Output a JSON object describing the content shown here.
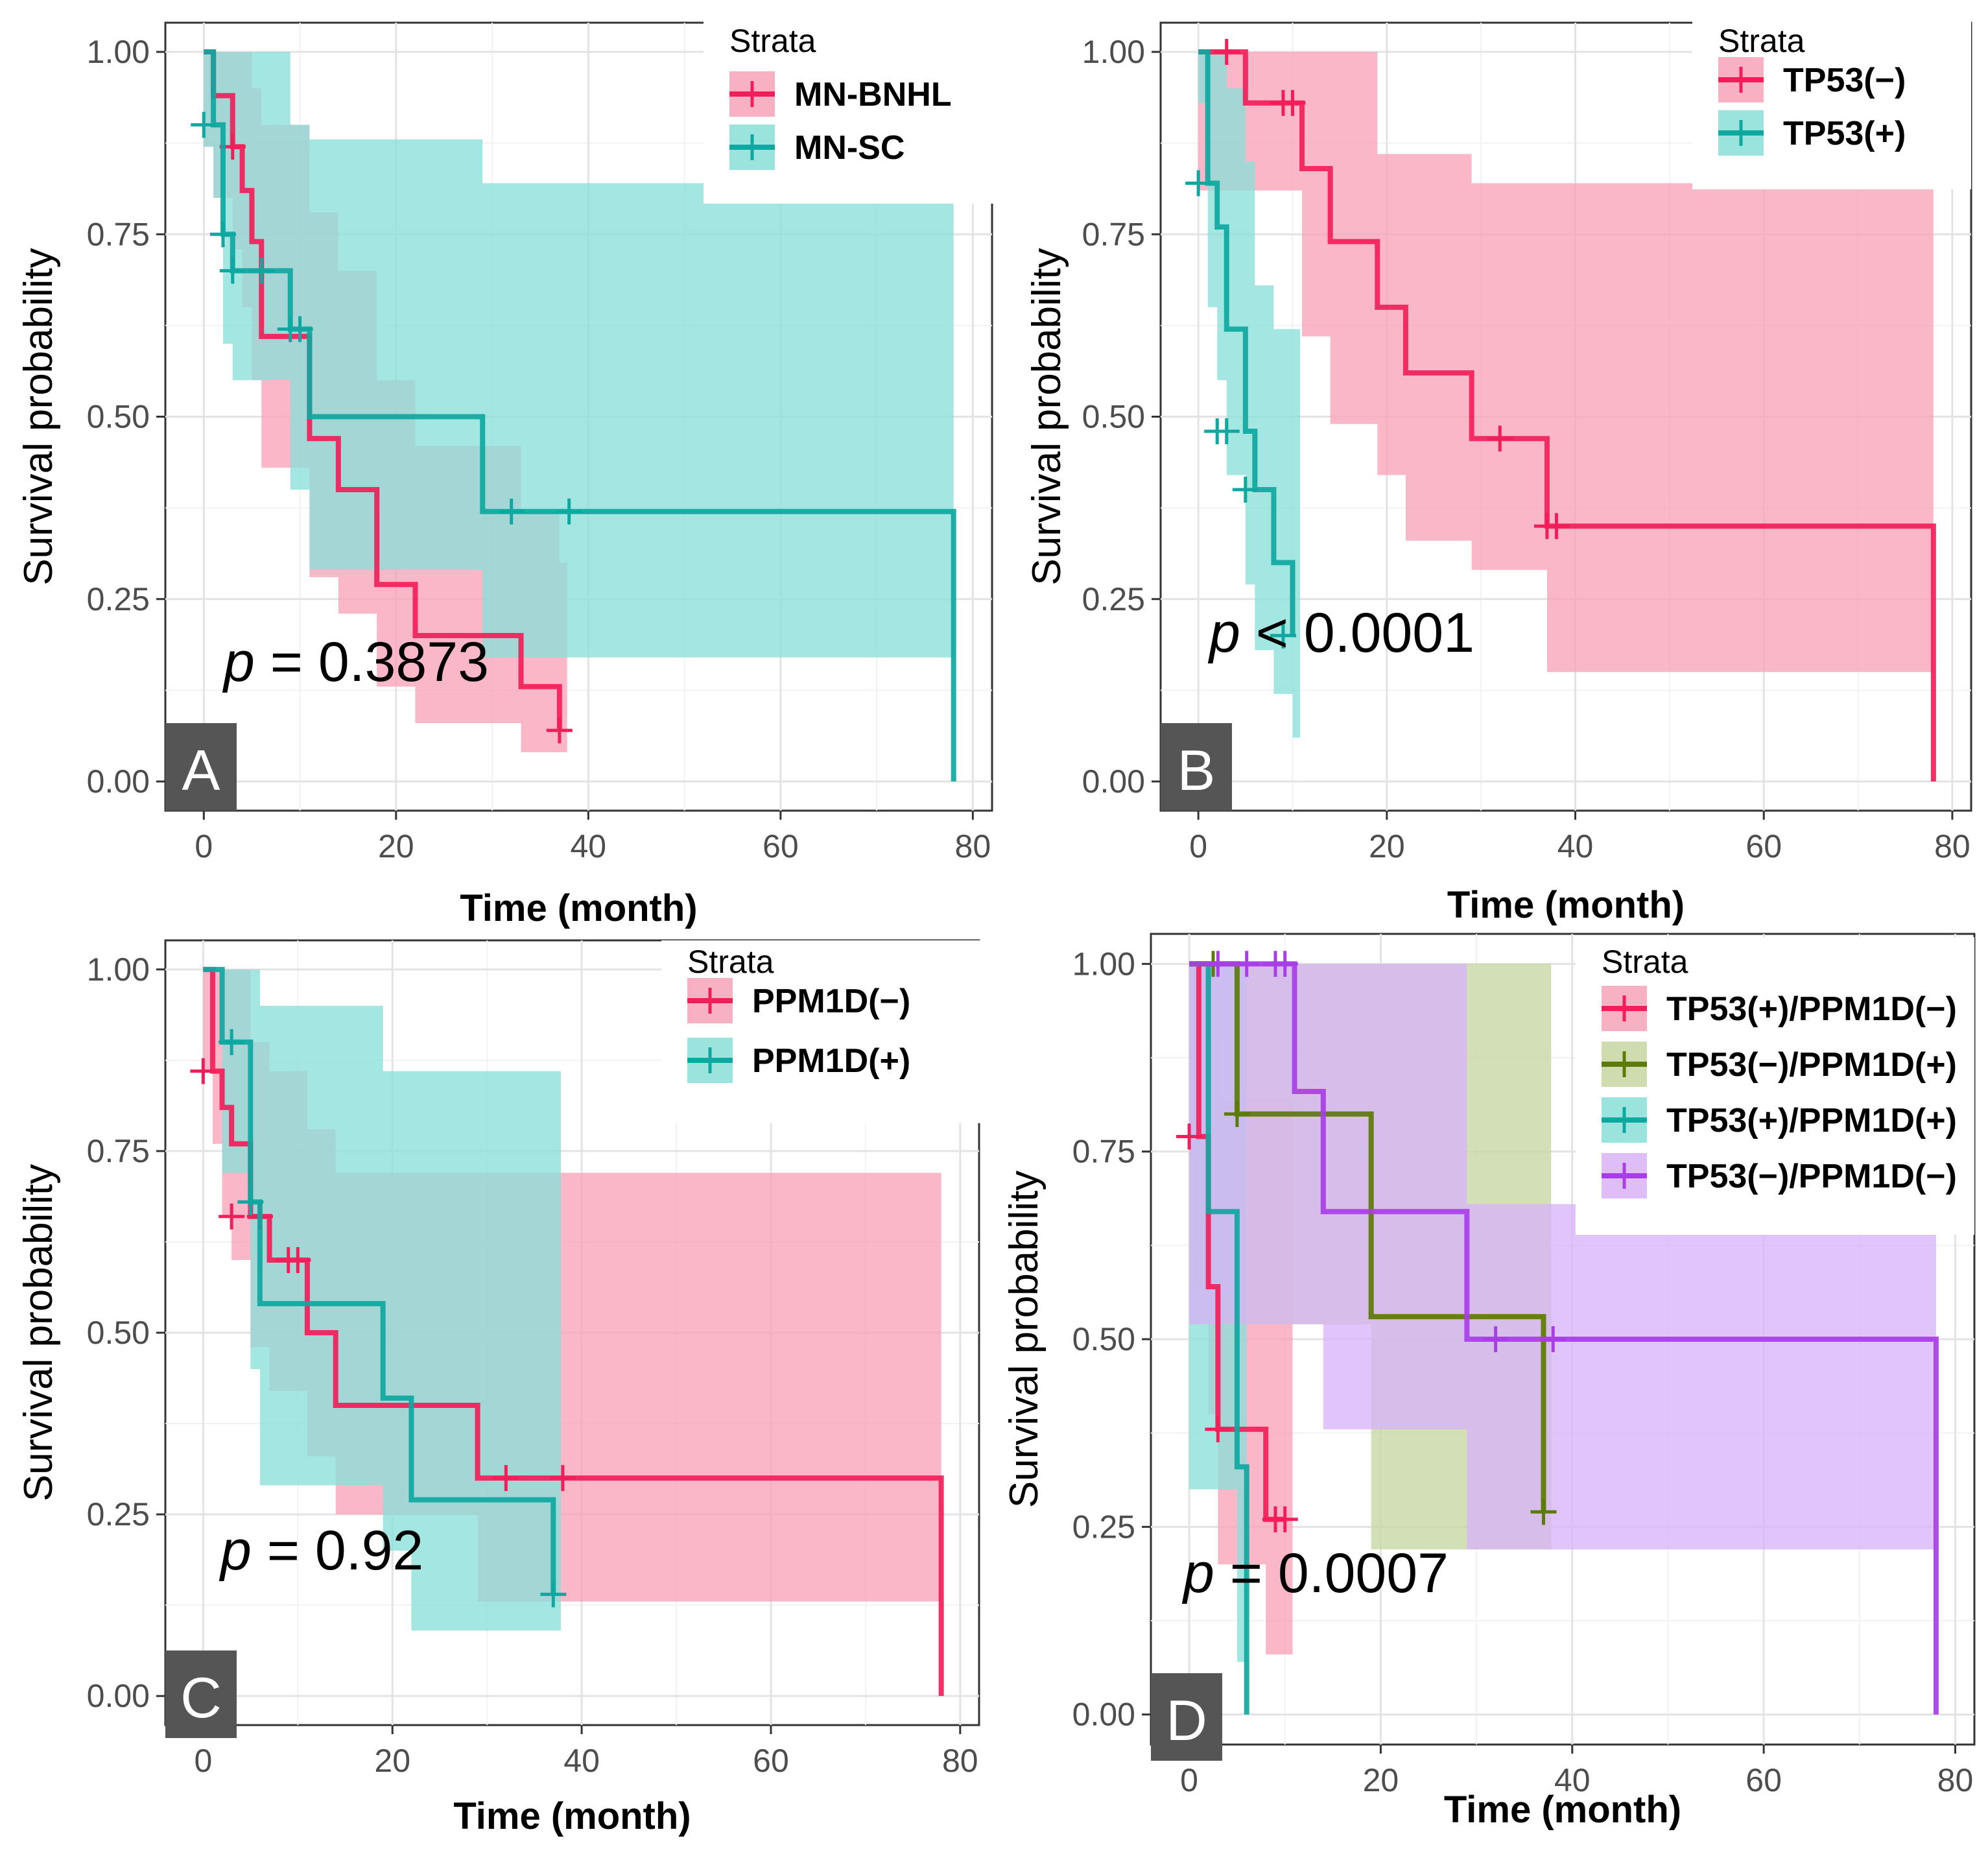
{
  "chart_data": [
    {
      "type": "line",
      "subtype": "kaplan-meier",
      "panel": "A",
      "xlabel": "Time (month)",
      "ylabel": "Survival probability",
      "xlim": [
        -4,
        82
      ],
      "ylim": [
        -0.04,
        1.04
      ],
      "xticks": [
        0,
        20,
        40,
        60,
        80
      ],
      "xtick_labels": [
        "0",
        "20",
        "40",
        "60",
        "80"
      ],
      "yticks": [
        0,
        0.25,
        0.5,
        0.75,
        1.0
      ],
      "ytick_labels": [
        "0.00",
        "0.25",
        "0.50",
        "0.75",
        "1.00"
      ],
      "legend_title": "Strata",
      "legend_position": "top-right",
      "pvalue_prefix": "p",
      "pvalue_text": " = 0.3873",
      "series": [
        {
          "name": "MN-BNHL",
          "color": "#f21e5a",
          "fill": "#f7a3b8",
          "x": [
            0,
            1,
            3,
            4,
            5,
            6,
            8,
            11,
            14,
            18,
            22,
            24,
            33,
            37
          ],
          "y": [
            1.0,
            0.94,
            0.87,
            0.81,
            0.74,
            0.61,
            0.61,
            0.47,
            0.4,
            0.27,
            0.2,
            0.2,
            0.13,
            0.07
          ],
          "lower": [
            0.87,
            0.8,
            0.73,
            0.65,
            0.55,
            0.43,
            0.43,
            0.28,
            0.23,
            0.13,
            0.08,
            0.08,
            0.04,
            0.04
          ],
          "upper": [
            1.0,
            1.0,
            1.0,
            1.0,
            0.95,
            0.9,
            0.9,
            0.78,
            0.7,
            0.55,
            0.46,
            0.46,
            0.37,
            0.3
          ],
          "censor_x": [
            3,
            37
          ],
          "censor_y": [
            0.87,
            0.07
          ]
        },
        {
          "name": "MN-SC",
          "color": "#0ea8a0",
          "fill": "#8adfd8",
          "x": [
            0,
            1,
            2,
            3,
            4,
            9,
            11,
            29,
            78
          ],
          "y": [
            1.0,
            0.9,
            0.75,
            0.7,
            0.7,
            0.62,
            0.5,
            0.37,
            0.0
          ],
          "lower": [
            0.87,
            0.8,
            0.6,
            0.55,
            0.55,
            0.4,
            0.29,
            0.17,
            0.17
          ],
          "upper": [
            1.0,
            1.0,
            1.0,
            1.0,
            1.0,
            0.9,
            0.88,
            0.82,
            0.82
          ],
          "censor_x": [
            0,
            2,
            3,
            6,
            9,
            10,
            32,
            38
          ],
          "censor_y": [
            0.9,
            0.75,
            0.7,
            0.7,
            0.62,
            0.62,
            0.37,
            0.37
          ]
        }
      ]
    },
    {
      "type": "line",
      "subtype": "kaplan-meier",
      "panel": "B",
      "xlabel": "Time (month)",
      "ylabel": "Survival probability",
      "xlim": [
        -4,
        82
      ],
      "ylim": [
        -0.04,
        1.04
      ],
      "xticks": [
        0,
        20,
        40,
        60,
        80
      ],
      "xtick_labels": [
        "0",
        "20",
        "40",
        "60",
        "80"
      ],
      "yticks": [
        0,
        0.25,
        0.5,
        0.75,
        1.0
      ],
      "ytick_labels": [
        "0.00",
        "0.25",
        "0.50",
        "0.75",
        "1.00"
      ],
      "legend_title": "Strata",
      "legend_position": "top-right",
      "pvalue_prefix": "p",
      "pvalue_text": " < 0.0001",
      "series": [
        {
          "name": "TP53(−)",
          "color": "#f21e5a",
          "fill": "#f7a3b8",
          "x": [
            0,
            5,
            11,
            14,
            19,
            22,
            29,
            37,
            78
          ],
          "y": [
            1.0,
            0.93,
            0.84,
            0.74,
            0.65,
            0.56,
            0.47,
            0.35,
            0.0
          ],
          "lower": [
            0.81,
            0.81,
            0.61,
            0.49,
            0.42,
            0.33,
            0.29,
            0.15,
            0.15
          ],
          "upper": [
            1.0,
            1.0,
            1.0,
            1.0,
            0.86,
            0.86,
            0.82,
            0.82,
            0.82
          ],
          "censor_x": [
            3,
            9,
            10,
            32,
            37,
            38
          ],
          "censor_y": [
            1.0,
            0.93,
            0.93,
            0.47,
            0.35,
            0.35
          ]
        },
        {
          "name": "TP53(+)",
          "color": "#0ea8a0",
          "fill": "#8adfd8",
          "x": [
            0,
            1,
            2,
            3,
            5,
            6,
            8,
            10
          ],
          "y": [
            1.0,
            0.82,
            0.76,
            0.62,
            0.48,
            0.4,
            0.3,
            0.2
          ],
          "lower": [
            0.93,
            0.65,
            0.55,
            0.42,
            0.27,
            0.18,
            0.12,
            0.06
          ],
          "upper": [
            1.0,
            1.0,
            1.0,
            0.95,
            0.85,
            0.68,
            0.62,
            0.62
          ],
          "censor_x": [
            0,
            2,
            3,
            5,
            9
          ],
          "censor_y": [
            0.82,
            0.48,
            0.48,
            0.4,
            0.2
          ]
        }
      ]
    },
    {
      "type": "line",
      "subtype": "kaplan-meier",
      "panel": "C",
      "xlabel": "Time (month)",
      "ylabel": "Survival probability",
      "xlim": [
        -4,
        82
      ],
      "ylim": [
        -0.04,
        1.04
      ],
      "xticks": [
        0,
        20,
        40,
        60,
        80
      ],
      "xtick_labels": [
        "0",
        "20",
        "40",
        "60",
        "80"
      ],
      "yticks": [
        0,
        0.25,
        0.5,
        0.75,
        1.0
      ],
      "ytick_labels": [
        "0.00",
        "0.25",
        "0.50",
        "0.75",
        "1.00"
      ],
      "legend_title": "Strata",
      "legend_position": "top-right",
      "pvalue_prefix": "p",
      "pvalue_text": " = 0.92",
      "series": [
        {
          "name": "PPM1D(−)",
          "color": "#f21e5a",
          "fill": "#f7a3b8",
          "x": [
            0,
            1,
            2,
            3,
            5,
            7,
            11,
            14,
            29,
            78
          ],
          "y": [
            1.0,
            0.86,
            0.81,
            0.76,
            0.66,
            0.6,
            0.5,
            0.4,
            0.3,
            0.0
          ],
          "lower": [
            0.86,
            0.76,
            0.66,
            0.6,
            0.48,
            0.42,
            0.33,
            0.25,
            0.13,
            0.13
          ],
          "upper": [
            1.0,
            1.0,
            1.0,
            1.0,
            0.9,
            0.86,
            0.78,
            0.72,
            0.72,
            0.72
          ],
          "censor_x": [
            0,
            3,
            6,
            9,
            10,
            32,
            38
          ],
          "censor_y": [
            0.86,
            0.66,
            0.66,
            0.6,
            0.6,
            0.3,
            0.3
          ]
        },
        {
          "name": "PPM1D(+)",
          "color": "#0ea8a0",
          "fill": "#8adfd8",
          "x": [
            0,
            2,
            5,
            6,
            19,
            22,
            37
          ],
          "y": [
            1.0,
            0.9,
            0.68,
            0.54,
            0.41,
            0.27,
            0.14
          ],
          "lower": [
            1.0,
            0.72,
            0.45,
            0.29,
            0.2,
            0.09,
            0.09
          ],
          "upper": [
            1.0,
            1.0,
            1.0,
            0.95,
            0.86,
            0.86,
            0.86
          ],
          "censor_x": [
            3,
            5,
            37
          ],
          "censor_y": [
            0.9,
            0.68,
            0.14
          ]
        }
      ]
    },
    {
      "type": "line",
      "subtype": "kaplan-meier",
      "panel": "D",
      "xlabel": "Time (month)",
      "ylabel": "Survival probability",
      "xlim": [
        -4,
        82
      ],
      "ylim": [
        -0.04,
        1.04
      ],
      "xticks": [
        0,
        20,
        40,
        60,
        80
      ],
      "xtick_labels": [
        "0",
        "20",
        "40",
        "60",
        "80"
      ],
      "yticks": [
        0,
        0.25,
        0.5,
        0.75,
        1.0
      ],
      "ytick_labels": [
        "0.00",
        "0.25",
        "0.50",
        "0.75",
        "1.00"
      ],
      "legend_title": "Strata",
      "legend_position": "top-right",
      "pvalue_prefix": "p",
      "pvalue_text": " = 0.0007",
      "series": [
        {
          "name": "TP53(+)/PPM1D(−)",
          "color": "#f21e5a",
          "fill": "#f7a3b8",
          "x": [
            0,
            1,
            2,
            3,
            5,
            8,
            10
          ],
          "y": [
            1.0,
            0.77,
            0.57,
            0.38,
            0.38,
            0.26,
            0.26
          ],
          "lower": [
            0.57,
            0.57,
            0.4,
            0.2,
            0.2,
            0.08,
            0.08
          ],
          "upper": [
            1.0,
            1.0,
            0.9,
            0.82,
            0.82,
            0.82,
            0.82
          ],
          "censor_x": [
            0,
            3,
            9,
            10
          ],
          "censor_y": [
            0.77,
            0.38,
            0.26,
            0.26
          ]
        },
        {
          "name": "TP53(−)/PPM1D(+)",
          "color": "#5c7a06",
          "fill": "#c6d6a2",
          "x": [
            0,
            5,
            19,
            37
          ],
          "y": [
            1.0,
            0.8,
            0.53,
            0.27
          ],
          "lower": [
            0.52,
            0.52,
            0.22,
            0.22
          ],
          "upper": [
            1.0,
            1.0,
            1.0,
            1.0
          ],
          "censor_x": [
            2.5,
            5,
            37
          ],
          "censor_y": [
            1.0,
            0.8,
            0.27
          ]
        },
        {
          "name": "TP53(+)/PPM1D(+)",
          "color": "#0ea8a0",
          "fill": "#8adfd8",
          "x": [
            0,
            2,
            5,
            6
          ],
          "y": [
            1.0,
            0.67,
            0.33,
            0.0
          ],
          "lower": [
            0.3,
            0.3,
            0.07,
            0.07
          ],
          "upper": [
            1.0,
            1.0,
            1.0,
            1.0
          ],
          "censor_x": [],
          "censor_y": []
        },
        {
          "name": "TP53(−)/PPM1D(−)",
          "color": "#a83ee6",
          "fill": "#d9b3f7",
          "x": [
            0,
            11,
            14,
            29,
            78
          ],
          "y": [
            1.0,
            0.83,
            0.67,
            0.5,
            0.0
          ],
          "lower": [
            0.52,
            0.52,
            0.38,
            0.22,
            0.22
          ],
          "upper": [
            1.0,
            1.0,
            1.0,
            0.68,
            0.68
          ],
          "censor_x": [
            3,
            6,
            9,
            10,
            32,
            38
          ],
          "censor_y": [
            1.0,
            1.0,
            1.0,
            1.0,
            0.5,
            0.5
          ]
        }
      ]
    }
  ]
}
